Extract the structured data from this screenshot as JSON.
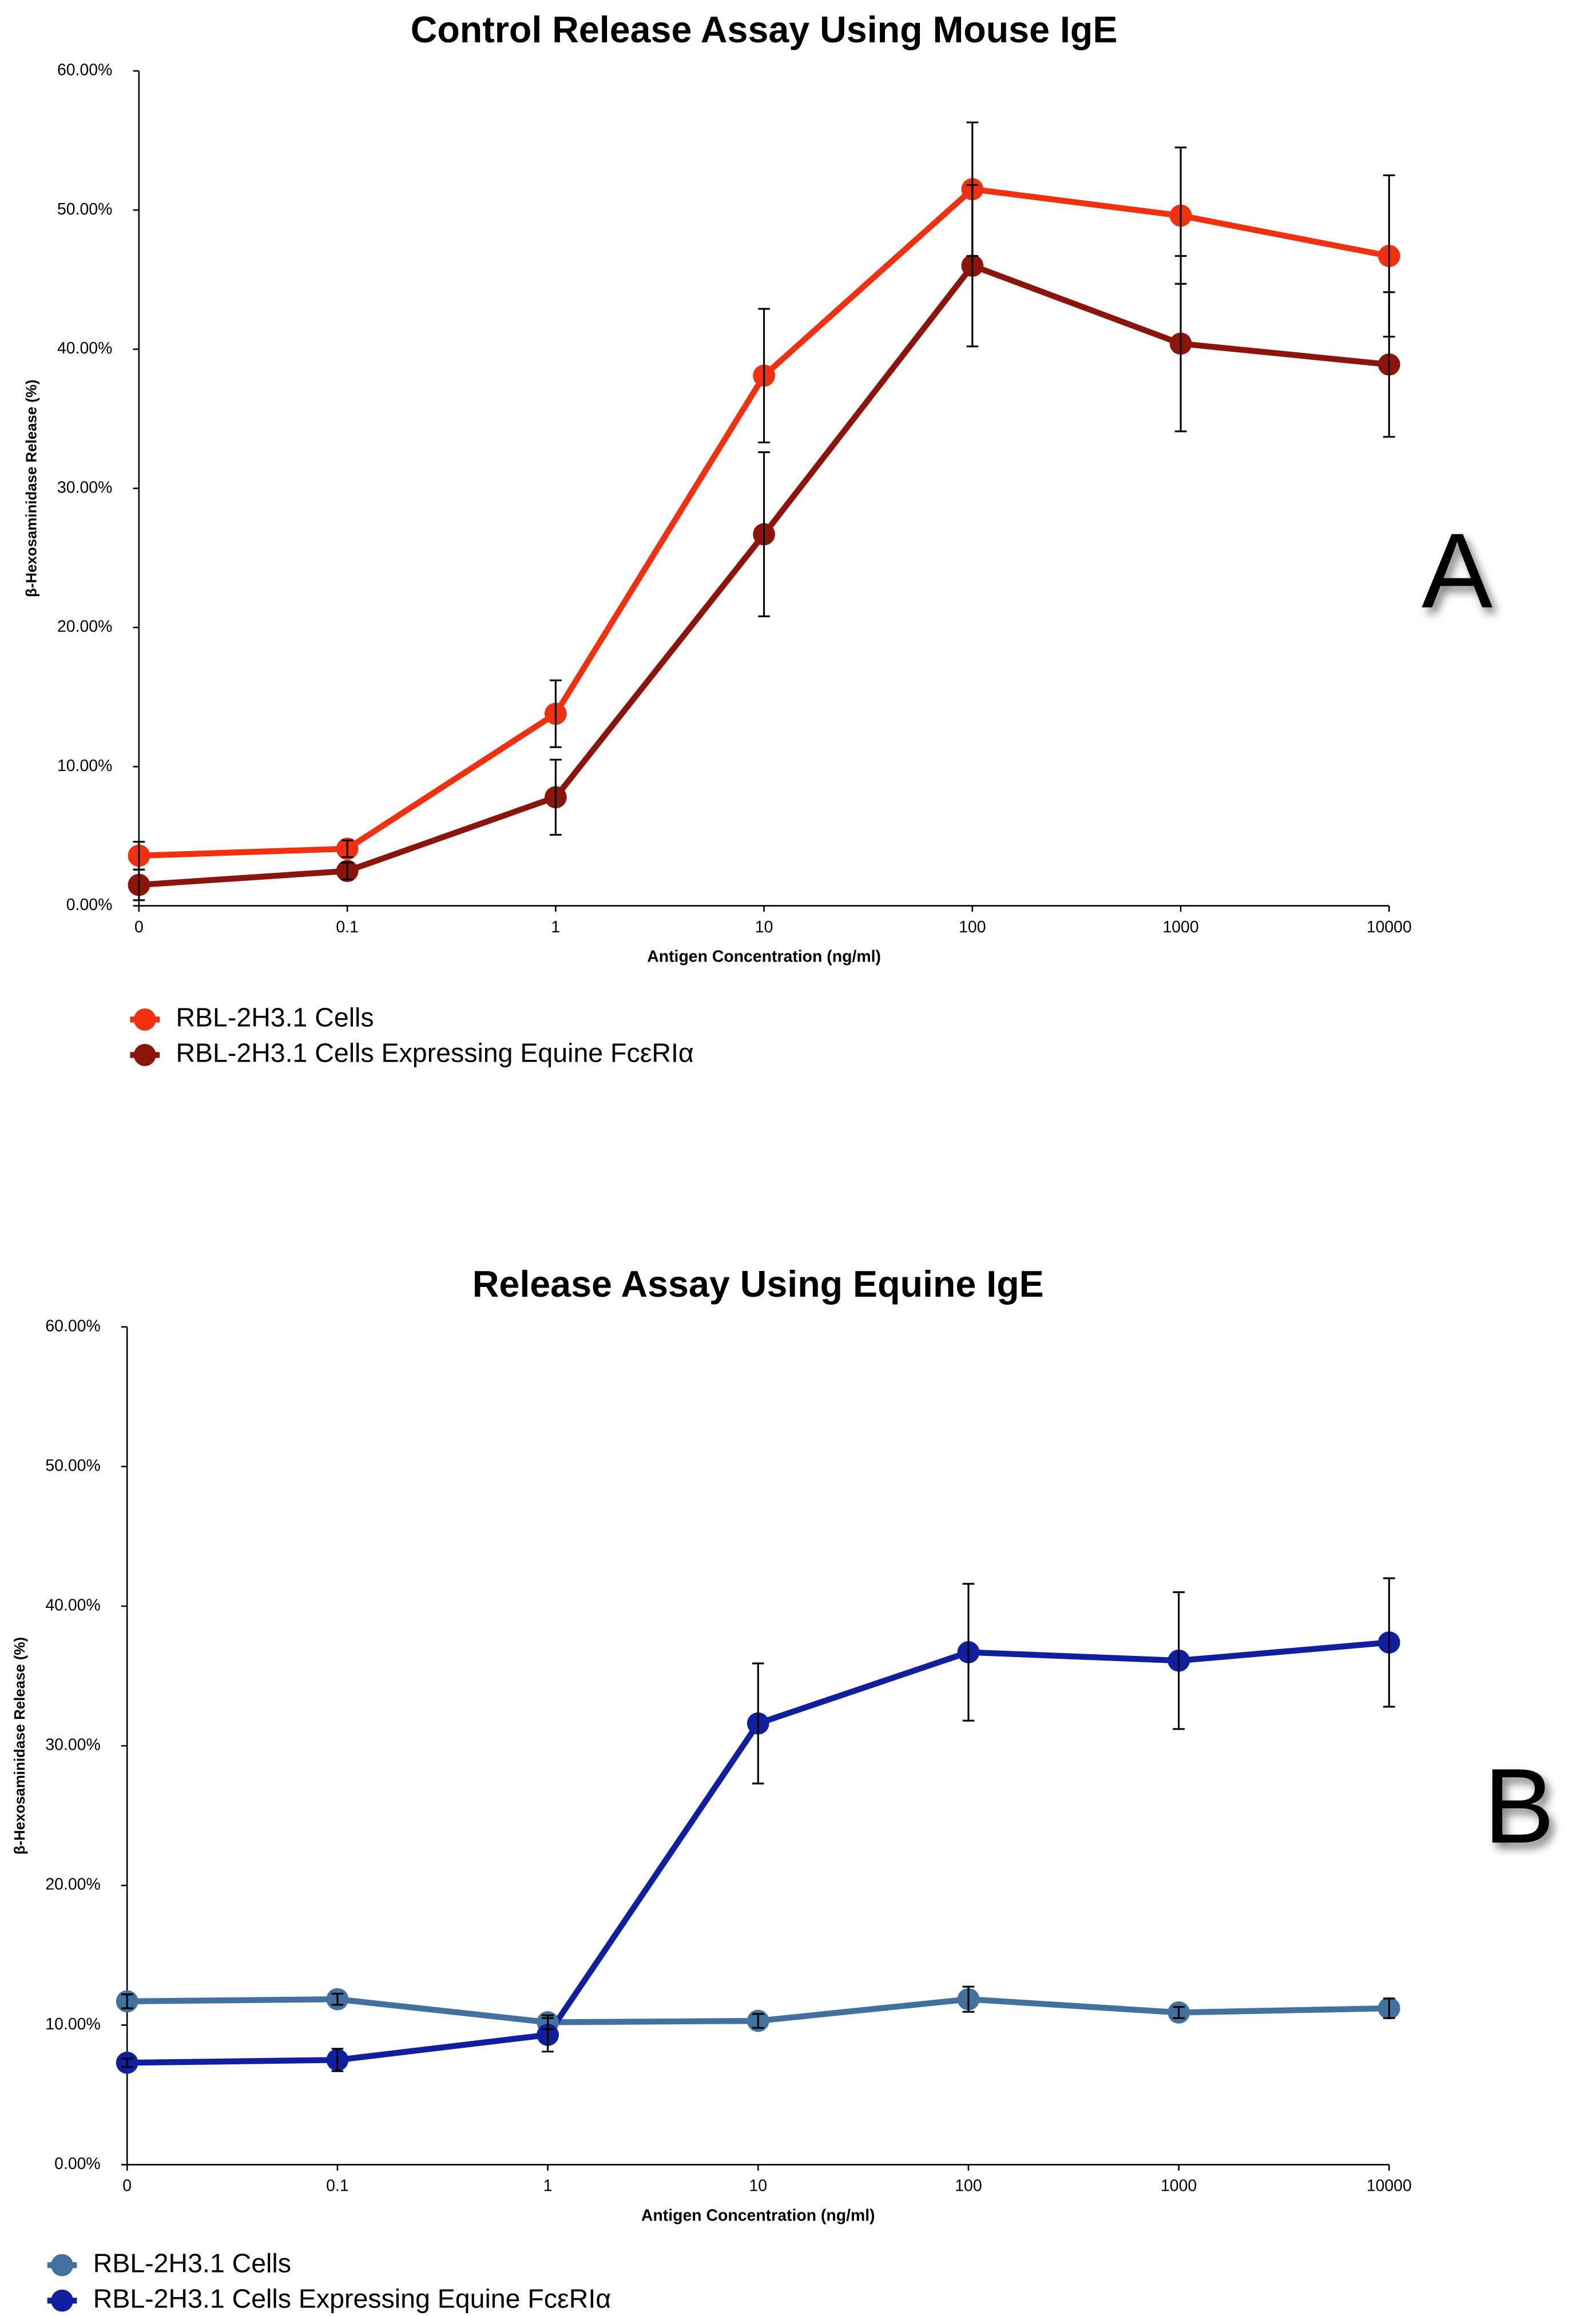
{
  "chart_data": [
    {
      "type": "line",
      "title": "Control Release Assay Using Mouse IgE",
      "x_label": "Antigen Concentration (ng/ml)",
      "y_label": "β-Hexosaminidase Release (%)",
      "annotation": "A",
      "legend": "below",
      "categories": [
        "0",
        "0.1",
        "1",
        "10",
        "100",
        "1000",
        "10000"
      ],
      "ylim": [
        0,
        60
      ],
      "yticks": [
        {
          "value": 0,
          "label": "0.00%"
        },
        {
          "value": 10,
          "label": "10.00%"
        },
        {
          "value": 20,
          "label": "20.00%"
        },
        {
          "value": 30,
          "label": "30.00%"
        },
        {
          "value": 40,
          "label": "40.00%"
        },
        {
          "value": 50,
          "label": "50.00%"
        },
        {
          "value": 60,
          "label": "60.00%"
        }
      ],
      "series": [
        {
          "name": "RBL-2H3.1 Cells",
          "color": "#f0300f",
          "values": [
            3.6,
            4.1,
            13.8,
            38.1,
            51.5,
            49.6,
            46.7
          ],
          "errors": [
            1.0,
            0.6,
            2.4,
            4.8,
            4.8,
            4.9,
            5.8
          ]
        },
        {
          "name": "RBL-2H3.1 Cells Expressing Equine FcεRIα",
          "color": "#8c150b",
          "values": [
            1.5,
            2.5,
            7.8,
            26.7,
            46.0,
            40.4,
            38.9
          ],
          "errors": [
            1.1,
            0.6,
            2.7,
            5.9,
            5.8,
            6.3,
            5.2
          ]
        }
      ]
    },
    {
      "type": "line",
      "title": "Release Assay Using Equine IgE",
      "x_label": "Antigen Concentration (ng/ml)",
      "y_label": "β-Hexosaminidase Release (%)",
      "annotation": "B",
      "legend": "below",
      "categories": [
        "0",
        "0.1",
        "1",
        "10",
        "100",
        "1000",
        "10000"
      ],
      "ylim": [
        0,
        60
      ],
      "yticks": [
        {
          "value": 0,
          "label": "0.00%"
        },
        {
          "value": 10,
          "label": "10.00%"
        },
        {
          "value": 20,
          "label": "20.00%"
        },
        {
          "value": 30,
          "label": "30.00%"
        },
        {
          "value": 40,
          "label": "40.00%"
        },
        {
          "value": 50,
          "label": "50.00%"
        },
        {
          "value": 60,
          "label": "60.00%"
        }
      ],
      "series": [
        {
          "name": "RBL-2H3.1 Cells",
          "color": "#42709f",
          "values": [
            11.7,
            11.85,
            10.2,
            10.3,
            11.85,
            10.9,
            11.2
          ],
          "errors": [
            0.5,
            0.4,
            0.5,
            0.5,
            0.9,
            0.4,
            0.7
          ]
        },
        {
          "name": "RBL-2H3.1 Cells Expressing Equine FcεRIα",
          "color": "#0f1f9e",
          "values": [
            7.3,
            7.5,
            9.3,
            31.6,
            36.7,
            36.1,
            37.4
          ],
          "errors": [
            0.3,
            0.8,
            1.2,
            4.3,
            4.9,
            4.9,
            4.6
          ]
        }
      ]
    }
  ]
}
